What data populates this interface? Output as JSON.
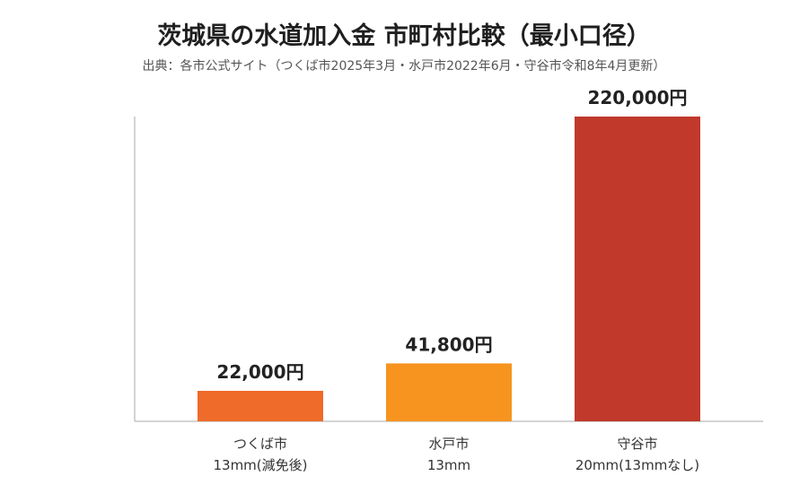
{
  "header": {
    "title": "茨城県の水道加入金 市町村比較（最小口径）",
    "source": "出典：各市公式サイト（つくば市2025年3月・水戸市2022年6月・守谷市令和8年4月更新）"
  },
  "chart_data": {
    "type": "bar",
    "title": "茨城県の水道加入金 市町村比較（最小口径）",
    "subtitle": "出典：各市公式サイト（つくば市2025年3月・水戸市2022年6月・守谷市令和8年4月更新）",
    "categories": [
      [
        "つくば市",
        "13mm(減免後)"
      ],
      [
        "水戸市",
        "13mm"
      ],
      [
        "守谷市",
        "20mm(13mmなし)"
      ]
    ],
    "values": [
      22000,
      41800,
      220000
    ],
    "value_labels": [
      "22,000円",
      "41,800円",
      "220,000円"
    ],
    "colors": [
      "#EE6B2A",
      "#F6941F",
      "#C0392B"
    ],
    "axis_color": "#aaaaaa",
    "ylim": [
      0,
      220000
    ],
    "grid": false,
    "legend": "none"
  }
}
